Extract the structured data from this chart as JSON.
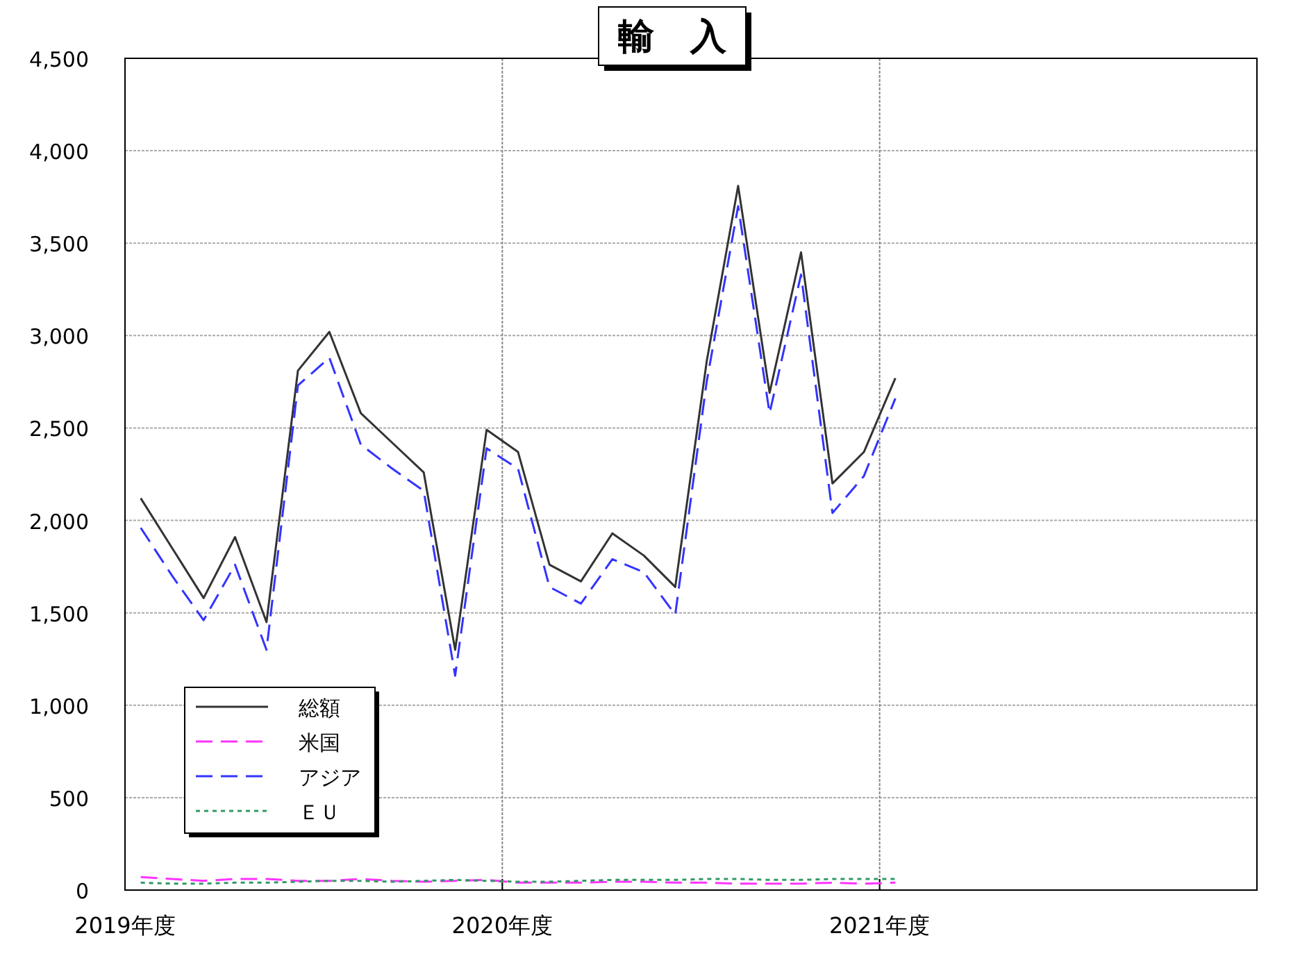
{
  "chart_data": {
    "type": "line",
    "title": "輸　入",
    "x": [
      "2019-04-16",
      "2019-05-16",
      "2019-06-16",
      "2019-07-16",
      "2019-08-16",
      "2019-09-16",
      "2019-10-16",
      "2019-11-16",
      "2019-12-16",
      "2020-01-16",
      "2020-02-16",
      "2020-03-16",
      "2020-04-16",
      "2020-05-16",
      "2020-06-16",
      "2020-07-16",
      "2020-08-16",
      "2020-09-16",
      "2020-10-16",
      "2020-11-16",
      "2020-12-16",
      "2021-01-16",
      "2021-02-16",
      "2021-03-16",
      "2021-04-16"
    ],
    "xlim": [
      "2019-04-01",
      "2022-04-01"
    ],
    "xticks": [
      {
        "value": "2019-04-01",
        "label": "2019年度"
      },
      {
        "value": "2020-04-01",
        "label": "2020年度"
      },
      {
        "value": "2021-04-01",
        "label": "2021年度"
      }
    ],
    "ylim": [
      0,
      4500
    ],
    "yticks": [
      {
        "value": 0,
        "label": "0"
      },
      {
        "value": 500,
        "label": "500"
      },
      {
        "value": 1000,
        "label": "1,000"
      },
      {
        "value": 1500,
        "label": "1,500"
      },
      {
        "value": 2000,
        "label": "2,000"
      },
      {
        "value": 2500,
        "label": "2,500"
      },
      {
        "value": 3000,
        "label": "3,000"
      },
      {
        "value": 3500,
        "label": "3,500"
      },
      {
        "value": 4000,
        "label": "4,000"
      },
      {
        "value": 4500,
        "label": "4,500"
      }
    ],
    "grid": true,
    "legend": "bottom left",
    "marker": "none",
    "series": [
      {
        "name": "総額",
        "color": "#333333",
        "line_style": "solid",
        "values": [
          2120,
          1850,
          1580,
          1910,
          1450,
          2810,
          3020,
          2580,
          2420,
          2260,
          1300,
          2490,
          2370,
          1760,
          1670,
          1930,
          1810,
          1640,
          2860,
          3810,
          2690,
          3450,
          2200,
          2370,
          2770
        ]
      },
      {
        "name": "米国",
        "color": "#ff33ff",
        "line_style": "dashed",
        "values": [
          70,
          60,
          50,
          60,
          60,
          50,
          50,
          60,
          50,
          45,
          50,
          55,
          40,
          40,
          40,
          45,
          45,
          40,
          40,
          35,
          35,
          35,
          40,
          35,
          40
        ]
      },
      {
        "name": "アジア",
        "color": "#3333ff",
        "line_style": "dashed",
        "values": [
          1960,
          1700,
          1460,
          1760,
          1300,
          2730,
          2880,
          2410,
          2280,
          2160,
          1160,
          2390,
          2280,
          1640,
          1550,
          1790,
          1720,
          1490,
          2750,
          3700,
          2580,
          3330,
          2040,
          2240,
          2660
        ]
      },
      {
        "name": "ＥＵ",
        "color": "#339966",
        "line_style": "dotted",
        "values": [
          40,
          35,
          35,
          40,
          40,
          45,
          50,
          50,
          45,
          50,
          55,
          50,
          45,
          45,
          50,
          55,
          55,
          55,
          60,
          60,
          55,
          55,
          60,
          60,
          60
        ]
      }
    ]
  }
}
